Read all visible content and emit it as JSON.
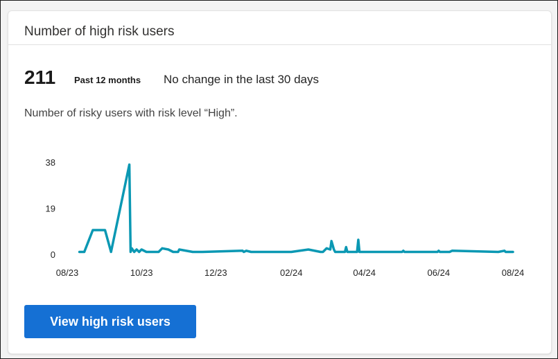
{
  "card": {
    "title": "Number of high risk users",
    "metric_value": "211",
    "metric_period": "Past 12 months",
    "metric_change": "No change in the last 30 days",
    "description": "Number of risky users with risk level “High”.",
    "button_label": "View high risk users"
  },
  "colors": {
    "line": "#0b98b3",
    "button": "#1570d4"
  },
  "chart_data": {
    "type": "line",
    "title": "",
    "xlabel": "",
    "ylabel": "",
    "ylim": [
      0,
      38
    ],
    "y_ticks": [
      {
        "label": "0",
        "value": 0
      },
      {
        "label": "19",
        "value": 19
      },
      {
        "label": "38",
        "value": 38
      }
    ],
    "x_ticks": [
      {
        "label": "08/23",
        "value": "2023-08-01"
      },
      {
        "label": "10/23",
        "value": "2023-10-01"
      },
      {
        "label": "12/23",
        "value": "2023-12-01"
      },
      {
        "label": "02/24",
        "value": "2024-02-01"
      },
      {
        "label": "04/24",
        "value": "2024-04-01"
      },
      {
        "label": "06/24",
        "value": "2024-06-01"
      },
      {
        "label": "08/24",
        "value": "2024-08-01"
      }
    ],
    "grid": false,
    "series": [
      {
        "color": "#0b98b3",
        "x": [
          "2023-08-11",
          "2023-08-15",
          "2023-08-22",
          "2023-09-01",
          "2023-09-06",
          "2023-09-21",
          "2023-09-22",
          "2023-09-23",
          "2023-09-25",
          "2023-09-27",
          "2023-09-29",
          "2023-10-01",
          "2023-10-05",
          "2023-10-15",
          "2023-10-18",
          "2023-10-23",
          "2023-10-27",
          "2023-10-31",
          "2023-11-01",
          "2023-11-12",
          "2023-11-15",
          "2023-11-20",
          "2023-12-23",
          "2023-12-24",
          "2023-12-26",
          "2023-12-30",
          "2024-01-01",
          "2024-02-01",
          "2024-02-15",
          "2024-02-25",
          "2024-02-27",
          "2024-03-01",
          "2024-03-04",
          "2024-03-05",
          "2024-03-07",
          "2024-03-08",
          "2024-03-16",
          "2024-03-17",
          "2024-03-18",
          "2024-03-26",
          "2024-03-27",
          "2024-03-28",
          "2024-05-02",
          "2024-05-03",
          "2024-05-04",
          "2024-05-31",
          "2024-06-01",
          "2024-06-02",
          "2024-06-10",
          "2024-06-12",
          "2024-07-20",
          "2024-07-25",
          "2024-07-26",
          "2024-08-01"
        ],
        "y": [
          1,
          1,
          10,
          10,
          1,
          37,
          1,
          2.5,
          1,
          2,
          1,
          2,
          1,
          1,
          2.5,
          2,
          1,
          1,
          2,
          1,
          1,
          1,
          1.5,
          1,
          1.5,
          1,
          1,
          1,
          2,
          1,
          1,
          2.5,
          2,
          5.5,
          2,
          1,
          1,
          3,
          1,
          1,
          6,
          1,
          1,
          1.5,
          1,
          1,
          1.5,
          1,
          1,
          1.5,
          1,
          1.5,
          1,
          1
        ]
      }
    ]
  }
}
